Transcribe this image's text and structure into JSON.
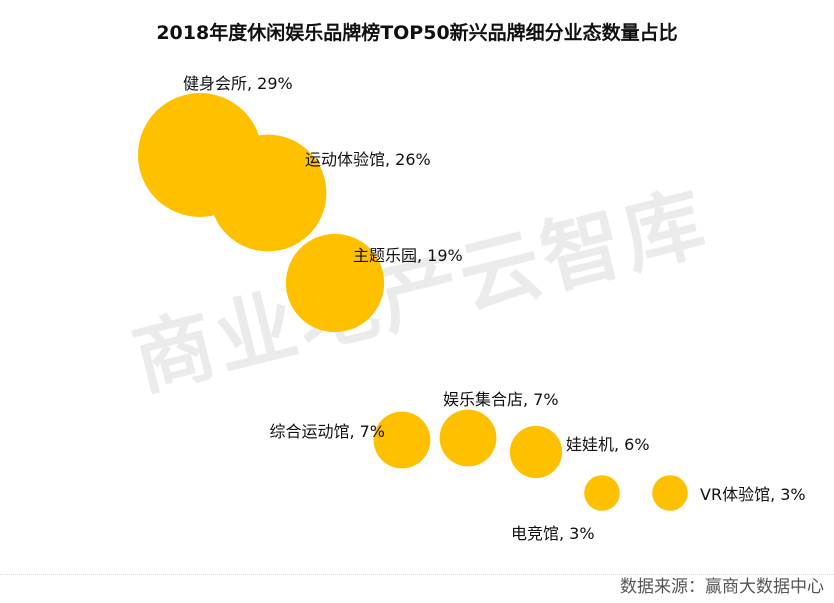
{
  "chart_data": {
    "type": "bubble",
    "title": "2018年度休闲娱乐品牌榜TOP50新兴品牌细分业态数量占比",
    "categories": [
      "健身会所",
      "运动体验馆",
      "主题乐园",
      "综合运动馆",
      "娱乐集合店",
      "娃娃机",
      "VR体验馆",
      "电竞馆"
    ],
    "values": [
      29,
      26,
      19,
      7,
      7,
      6,
      3,
      3
    ],
    "value_labels": [
      "健身会所, 29%",
      "运动体验馆, 26%",
      "主题乐园, 19%",
      "综合运动馆, 7%",
      "娱乐集合店, 7%",
      "娃娃机, 6%",
      "VR体验馆, 3%",
      "电竞馆, 3%"
    ],
    "unit": "%",
    "color": "#FFC000",
    "grid": false,
    "axes": false
  },
  "watermark": "商业地产云智库",
  "source": "数据来源：赢商大数据中心"
}
